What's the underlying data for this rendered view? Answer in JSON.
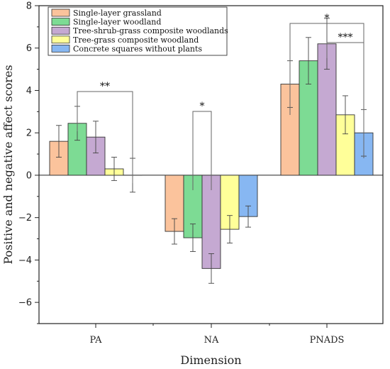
{
  "chart_data": {
    "type": "bar",
    "title": "",
    "xlabel": "Dimension",
    "ylabel": "Positive and negative affect scores",
    "categories": [
      "PA",
      "NA",
      "PNADS"
    ],
    "ylim": [
      -7,
      8
    ],
    "yticks": [
      -6,
      -4,
      -2,
      0,
      2,
      4,
      6,
      8
    ],
    "ytick_labels": [
      "−6",
      "−4",
      "−2",
      "0",
      "2",
      "4",
      "6",
      "8"
    ],
    "grid": false,
    "legend_position": "top-left",
    "series": [
      {
        "name": "Single-layer grassland",
        "color": "#FBC39C",
        "values": [
          1.6,
          -2.65,
          4.3
        ],
        "errors": [
          0.75,
          0.6,
          1.1
        ]
      },
      {
        "name": "Single-layer woodland",
        "color": "#7DDB94",
        "values": [
          2.45,
          -2.95,
          5.4
        ],
        "errors": [
          0.8,
          0.65,
          1.1
        ]
      },
      {
        "name": "Tree-shrub-grass composite woodlands",
        "color": "#C5A9D2",
        "values": [
          1.8,
          -4.4,
          6.2
        ],
        "errors": [
          0.75,
          0.7,
          1.2
        ]
      },
      {
        "name": "Tree-grass composite woodland",
        "color": "#FFFF99",
        "values": [
          0.3,
          -2.55,
          2.85
        ],
        "errors": [
          0.55,
          0.65,
          0.9
        ]
      },
      {
        "name": "Concrete squares without plants",
        "color": "#87B7F2",
        "values": [
          0.0,
          -1.95,
          2.0
        ],
        "errors": [
          0.8,
          0.5,
          1.1
        ]
      }
    ],
    "significance": [
      {
        "label": "**",
        "category": 0,
        "from_series": 1,
        "to_series": 4
      },
      {
        "label": "*",
        "category": 1,
        "from_series": 1,
        "to_series": 2
      },
      {
        "label": "*",
        "category": 2,
        "from_series": 0,
        "to_series": 4
      },
      {
        "label": "***",
        "category": 2,
        "from_series": 2,
        "to_series": 4
      }
    ]
  }
}
